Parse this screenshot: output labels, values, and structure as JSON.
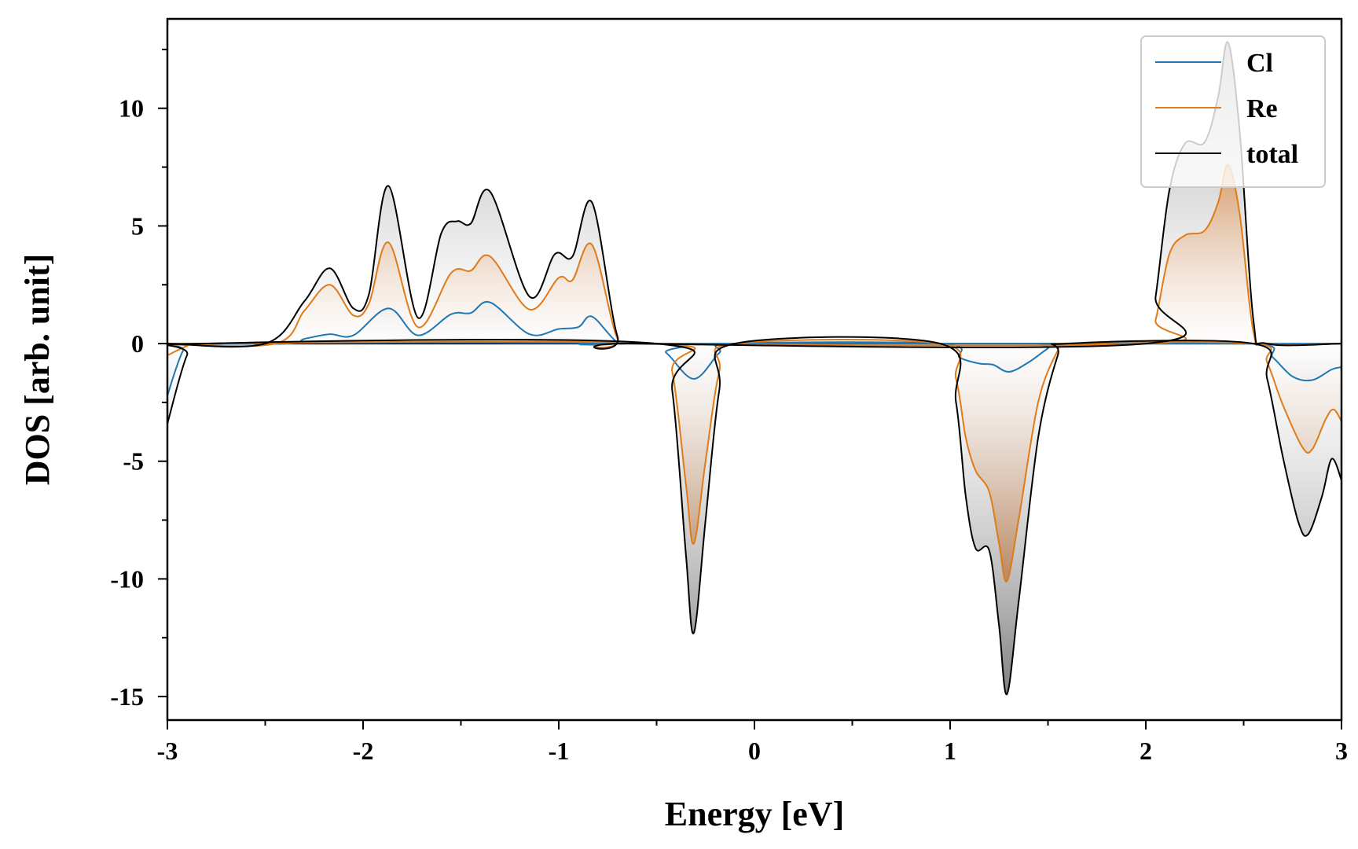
{
  "chart_data": {
    "type": "area",
    "title": "",
    "xlabel": "Energy [eV]",
    "ylabel": "DOS [arb. unit]",
    "xlim": [
      -3,
      3
    ],
    "ylim": [
      -16,
      13.8
    ],
    "xticks": [
      -3,
      -2,
      -1,
      0,
      1,
      2,
      3
    ],
    "xtick_labels": [
      "-3",
      "-2",
      "-1",
      "0",
      "1",
      "2",
      "3"
    ],
    "yticks": [
      -15,
      -10,
      -5,
      0,
      5,
      10
    ],
    "ytick_labels": [
      "-15",
      "-10",
      "-5",
      "0",
      "5",
      "10"
    ],
    "grid": false,
    "legend_position": "top-right",
    "series": [
      {
        "name": "Cl",
        "color": "#1f77b4",
        "up": [
          [
            -3,
            0
          ],
          [
            -2.4,
            0
          ],
          [
            -2.3,
            0.2
          ],
          [
            -2.17,
            0.4
          ],
          [
            -2.05,
            0.35
          ],
          [
            -1.87,
            1.5
          ],
          [
            -1.72,
            0.35
          ],
          [
            -1.55,
            1.25
          ],
          [
            -1.45,
            1.3
          ],
          [
            -1.35,
            1.75
          ],
          [
            -1.15,
            0.4
          ],
          [
            -1.0,
            0.62
          ],
          [
            -0.9,
            0.7
          ],
          [
            -0.83,
            1.15
          ],
          [
            -0.7,
            0.05
          ],
          [
            -0.6,
            0
          ],
          [
            3,
            0
          ]
        ],
        "down": [
          [
            -3,
            -2.2
          ],
          [
            -2.92,
            -0.3
          ],
          [
            -2.85,
            0
          ],
          [
            -0.55,
            0
          ],
          [
            -0.45,
            -0.4
          ],
          [
            -0.31,
            -1.5
          ],
          [
            -0.18,
            -0.4
          ],
          [
            -0.1,
            0
          ],
          [
            0.95,
            0
          ],
          [
            1.05,
            -0.6
          ],
          [
            1.15,
            -0.85
          ],
          [
            1.22,
            -0.9
          ],
          [
            1.3,
            -1.2
          ],
          [
            1.4,
            -0.8
          ],
          [
            1.5,
            -0.2
          ],
          [
            1.55,
            0
          ],
          [
            2.55,
            0
          ],
          [
            2.65,
            -0.6
          ],
          [
            2.75,
            -1.4
          ],
          [
            2.85,
            -1.55
          ],
          [
            2.95,
            -1.1
          ],
          [
            3,
            -1.0
          ]
        ]
      },
      {
        "name": "Re",
        "color": "#e07b1a",
        "up": [
          [
            -3,
            0
          ],
          [
            -2.45,
            0
          ],
          [
            -2.3,
            1.4
          ],
          [
            -2.17,
            2.5
          ],
          [
            -2.05,
            1.2
          ],
          [
            -1.97,
            1.7
          ],
          [
            -1.87,
            4.3
          ],
          [
            -1.72,
            0.7
          ],
          [
            -1.55,
            3.0
          ],
          [
            -1.45,
            3.1
          ],
          [
            -1.35,
            3.7
          ],
          [
            -1.15,
            1.45
          ],
          [
            -1.0,
            2.8
          ],
          [
            -0.93,
            2.7
          ],
          [
            -0.83,
            4.2
          ],
          [
            -0.7,
            0.2
          ],
          [
            -0.6,
            0
          ],
          [
            2.0,
            0
          ],
          [
            2.05,
            1.0
          ],
          [
            2.12,
            3.8
          ],
          [
            2.2,
            4.6
          ],
          [
            2.3,
            4.8
          ],
          [
            2.37,
            6.0
          ],
          [
            2.42,
            7.6
          ],
          [
            2.48,
            5.5
          ],
          [
            2.55,
            0.5
          ],
          [
            2.62,
            0
          ],
          [
            3,
            0
          ]
        ],
        "down": [
          [
            -3,
            -0.5
          ],
          [
            -2.9,
            -0.1
          ],
          [
            -2.85,
            0
          ],
          [
            -0.5,
            0
          ],
          [
            -0.42,
            -1.2
          ],
          [
            -0.35,
            -6.0
          ],
          [
            -0.31,
            -8.5
          ],
          [
            -0.25,
            -5.0
          ],
          [
            -0.18,
            -1.2
          ],
          [
            -0.1,
            0
          ],
          [
            0.95,
            0
          ],
          [
            1.03,
            -1.5
          ],
          [
            1.08,
            -4.0
          ],
          [
            1.13,
            -5.4
          ],
          [
            1.2,
            -6.3
          ],
          [
            1.25,
            -8.5
          ],
          [
            1.29,
            -10.1
          ],
          [
            1.35,
            -7.5
          ],
          [
            1.45,
            -2.5
          ],
          [
            1.55,
            -0.3
          ],
          [
            1.6,
            0
          ],
          [
            2.55,
            0
          ],
          [
            2.62,
            -0.8
          ],
          [
            2.7,
            -2.6
          ],
          [
            2.8,
            -4.4
          ],
          [
            2.85,
            -4.5
          ],
          [
            2.92,
            -3.2
          ],
          [
            2.96,
            -2.8
          ],
          [
            3,
            -3.3
          ]
        ]
      },
      {
        "name": "total",
        "color": "#000000",
        "up": [
          [
            -3,
            0
          ],
          [
            -2.5,
            0
          ],
          [
            -2.3,
            1.8
          ],
          [
            -2.17,
            3.2
          ],
          [
            -2.05,
            1.5
          ],
          [
            -1.97,
            2.1
          ],
          [
            -1.87,
            6.7
          ],
          [
            -1.72,
            1.1
          ],
          [
            -1.6,
            4.7
          ],
          [
            -1.52,
            5.2
          ],
          [
            -1.45,
            5.1
          ],
          [
            -1.35,
            6.45
          ],
          [
            -1.15,
            2.0
          ],
          [
            -1.02,
            3.8
          ],
          [
            -0.93,
            3.7
          ],
          [
            -0.83,
            6.0
          ],
          [
            -0.7,
            0.3
          ],
          [
            -0.6,
            0
          ],
          [
            2.0,
            0
          ],
          [
            2.05,
            2.0
          ],
          [
            2.12,
            6.5
          ],
          [
            2.2,
            8.5
          ],
          [
            2.3,
            8.55
          ],
          [
            2.37,
            10.5
          ],
          [
            2.42,
            12.8
          ],
          [
            2.48,
            9.0
          ],
          [
            2.55,
            1.0
          ],
          [
            2.62,
            0
          ],
          [
            3,
            0
          ]
        ],
        "down": [
          [
            -3,
            -3.4
          ],
          [
            -2.9,
            -0.5
          ],
          [
            -2.82,
            0
          ],
          [
            -0.5,
            0
          ],
          [
            -0.42,
            -2.0
          ],
          [
            -0.35,
            -9.0
          ],
          [
            -0.31,
            -12.3
          ],
          [
            -0.25,
            -7.5
          ],
          [
            -0.18,
            -2.0
          ],
          [
            -0.1,
            0
          ],
          [
            0.95,
            0
          ],
          [
            1.03,
            -2.5
          ],
          [
            1.08,
            -6.5
          ],
          [
            1.13,
            -8.7
          ],
          [
            1.2,
            -8.8
          ],
          [
            1.25,
            -12.0
          ],
          [
            1.29,
            -14.9
          ],
          [
            1.35,
            -11.0
          ],
          [
            1.45,
            -4.0
          ],
          [
            1.55,
            -0.5
          ],
          [
            1.6,
            0
          ],
          [
            2.55,
            0
          ],
          [
            2.62,
            -1.5
          ],
          [
            2.7,
            -4.8
          ],
          [
            2.78,
            -7.6
          ],
          [
            2.83,
            -8.1
          ],
          [
            2.9,
            -6.5
          ],
          [
            2.95,
            -4.9
          ],
          [
            3,
            -5.8
          ]
        ]
      }
    ]
  }
}
